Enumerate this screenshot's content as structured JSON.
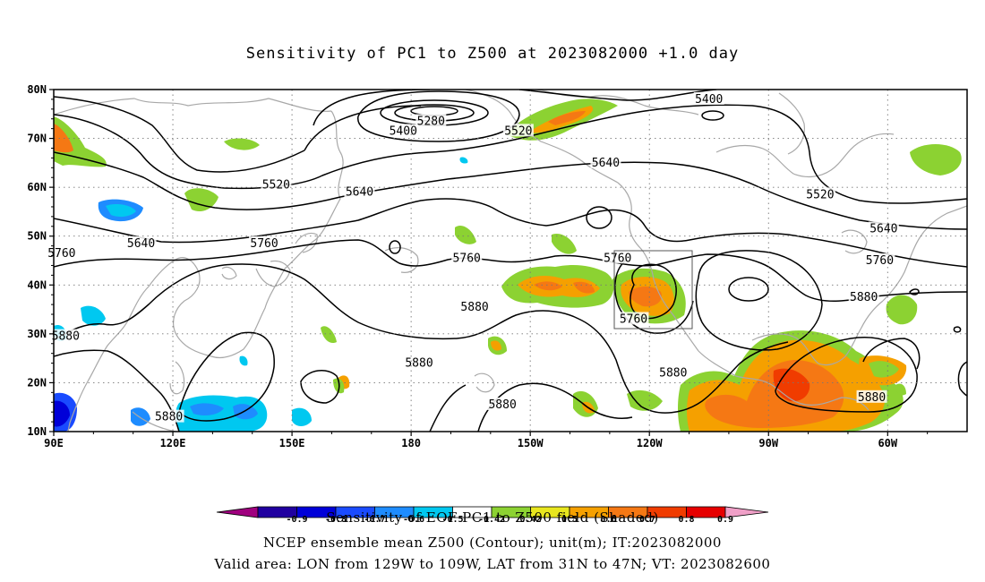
{
  "title": "Sensitivity of PC1 to Z500 at 2023082000 +1.0 day",
  "lat_ticks": [
    "80N",
    "70N",
    "60N",
    "50N",
    "40N",
    "30N",
    "20N",
    "10N"
  ],
  "lon_ticks": [
    "90E",
    "120E",
    "150E",
    "180",
    "150W",
    "120W",
    "90W",
    "60W"
  ],
  "contour_labels": [
    {
      "text": "5400",
      "lon": 178,
      "lat": 71.5
    },
    {
      "text": "5280",
      "lon": 185,
      "lat": 73.5
    },
    {
      "text": "5400",
      "lon": 255,
      "lat": 78
    },
    {
      "text": "5520",
      "lon": 207,
      "lat": 71.5
    },
    {
      "text": "5520",
      "lon": 146,
      "lat": 60.5
    },
    {
      "text": "5520",
      "lon": 283,
      "lat": 58.5
    },
    {
      "text": "5640",
      "lon": 229,
      "lat": 65
    },
    {
      "text": "5640",
      "lon": 167,
      "lat": 59
    },
    {
      "text": "5640",
      "lon": 112,
      "lat": 48.5
    },
    {
      "text": "5640",
      "lon": 299,
      "lat": 51.5
    },
    {
      "text": "5760",
      "lon": 92,
      "lat": 46.5
    },
    {
      "text": "5760",
      "lon": 143,
      "lat": 48.5
    },
    {
      "text": "5760",
      "lon": 194,
      "lat": 45.5
    },
    {
      "text": "5760",
      "lon": 232,
      "lat": 45.5
    },
    {
      "text": "5760",
      "lon": 298,
      "lat": 45
    },
    {
      "text": "5760",
      "lon": 236,
      "lat": 33
    },
    {
      "text": "5880",
      "lon": 196,
      "lat": 35.5
    },
    {
      "text": "5880",
      "lon": 93,
      "lat": 29.5
    },
    {
      "text": "5880",
      "lon": 182,
      "lat": 24
    },
    {
      "text": "5880",
      "lon": 203,
      "lat": 15.5
    },
    {
      "text": "5880",
      "lon": 119,
      "lat": 13
    },
    {
      "text": "5880",
      "lon": 246,
      "lat": 22
    },
    {
      "text": "5880",
      "lon": 294,
      "lat": 37.5
    },
    {
      "text": "5880",
      "lon": 296,
      "lat": 17
    }
  ],
  "colorbar": {
    "colors": [
      "#a0007f",
      "#2000a0",
      "#0000d8",
      "#1a4bff",
      "#1e8cff",
      "#00c8f0",
      "#ffffff",
      "#8cd232",
      "#e8e61e",
      "#f5a000",
      "#f57814",
      "#f03c00",
      "#e60000",
      "#f0a0c8"
    ],
    "labels": [
      "-0.9",
      "-0.8",
      "-0.7",
      "-0.6",
      "-0.5",
      "-0.42",
      "0.42",
      "0.5",
      "0.6",
      "0.7",
      "0.8",
      "0.9"
    ]
  },
  "captions": [
    "Sensitivity of EOF PC1 to Z500 field (Shaded)",
    "NCEP ensemble mean Z500 (Contour); unit(m); IT:2023082000",
    "Valid area: LON from 129W to 109W, LAT from 31N to 47N; VT: 2023082600"
  ]
}
